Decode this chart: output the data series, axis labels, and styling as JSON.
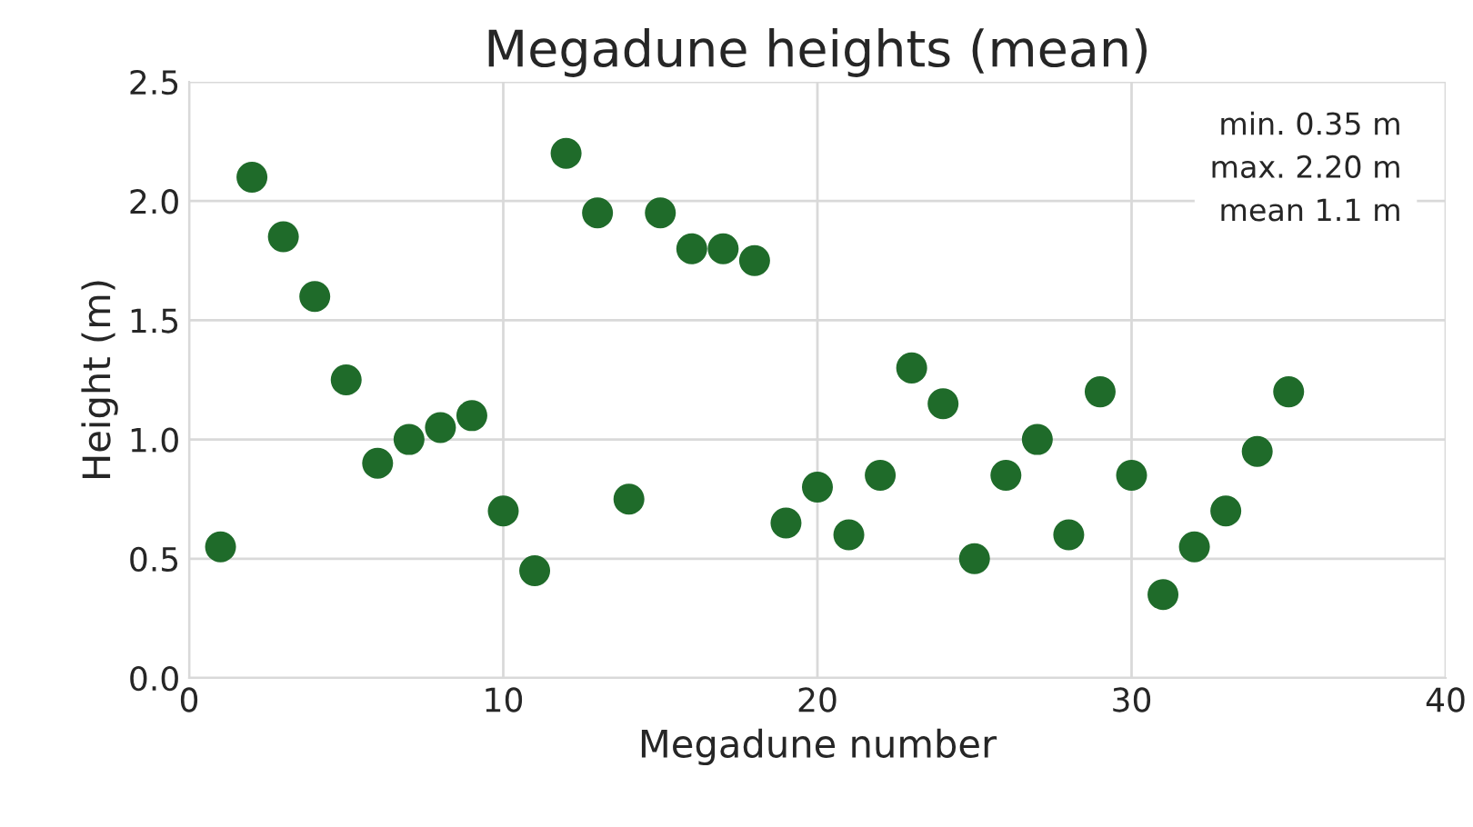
{
  "chart_data": {
    "type": "scatter",
    "title": "Megadune heights (mean)",
    "xlabel": "Megadune number",
    "ylabel": "Height (m)",
    "x": [
      1,
      2,
      3,
      4,
      5,
      6,
      7,
      8,
      9,
      10,
      11,
      12,
      13,
      14,
      15,
      16,
      17,
      18,
      19,
      20,
      21,
      22,
      23,
      24,
      25,
      26,
      27,
      28,
      29,
      30,
      31,
      32,
      33,
      34,
      35
    ],
    "series": [
      {
        "color": "#1f6b2a",
        "values": [
          0.55,
          2.1,
          1.85,
          1.6,
          1.25,
          0.9,
          1.0,
          1.05,
          1.1,
          0.7,
          0.45,
          2.2,
          1.95,
          0.75,
          1.95,
          1.8,
          1.8,
          1.75,
          0.65,
          0.8,
          0.6,
          0.85,
          1.3,
          1.15,
          0.5,
          0.85,
          1.0,
          0.6,
          1.2,
          0.85,
          0.35,
          0.55,
          0.7,
          0.95,
          1.2
        ]
      }
    ],
    "xlim": [
      0,
      40
    ],
    "xticks": [
      0,
      10,
      20,
      30,
      40
    ],
    "ylim": [
      0,
      2.5
    ],
    "yticks": [
      {
        "value": 0,
        "label": "0.0"
      },
      {
        "value": 0.5,
        "label": "0.5"
      },
      {
        "value": 1,
        "label": "1.0"
      },
      {
        "value": 1.5,
        "label": "1.5"
      },
      {
        "value": 2,
        "label": "2.0"
      },
      {
        "value": 2.5,
        "label": "2.5"
      }
    ],
    "grid": true,
    "marker": "circle",
    "annotations": [
      "min. 0.35 m",
      "max. 2.20 m",
      "mean 1.1 m"
    ]
  }
}
